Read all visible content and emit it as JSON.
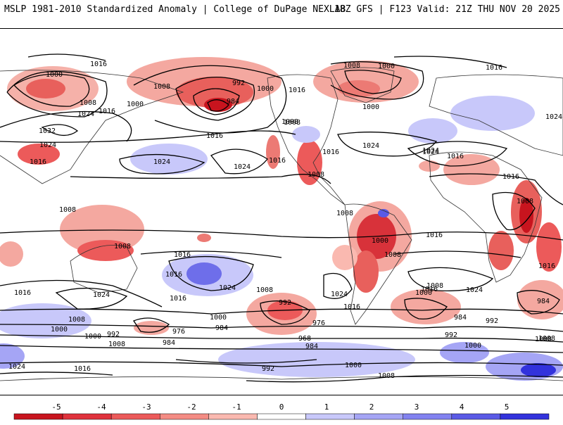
{
  "header": {
    "left_title": "MSLP 1981-2010 Standardized Anomaly | College of DuPage NEXLAB",
    "right_title": "18Z GFS | F123 Valid: 21Z THU NOV 20 2025"
  },
  "map": {
    "isobar_labels": [
      {
        "text": "1016",
        "id": "label-1016-nw"
      },
      {
        "text": "1000",
        "id": "label-1000-europe"
      },
      {
        "text": "1008",
        "id": "label-1008-europe"
      },
      {
        "text": "1024",
        "id": "label-1024-asia"
      },
      {
        "text": "1032",
        "id": "label-1032-asia"
      },
      {
        "text": "1024",
        "id": "label-1024-china"
      },
      {
        "text": "1016",
        "id": "label-1016-china"
      },
      {
        "text": "1016",
        "id": "label-1016-japan"
      },
      {
        "text": "1000",
        "id": "label-1000-kamchatka"
      },
      {
        "text": "1008",
        "id": "label-1008-bering"
      },
      {
        "text": "992",
        "id": "label-992-aleutian"
      },
      {
        "text": "984",
        "id": "label-984-aleutian"
      },
      {
        "text": "1000",
        "id": "label-1000-gulf-alaska"
      },
      {
        "text": "1016",
        "id": "label-1016-canada"
      },
      {
        "text": "1008",
        "id": "label-1008-hudson"
      },
      {
        "text": "1000",
        "id": "label-1000-greenland"
      },
      {
        "text": "1008",
        "id": "label-1008-atlantic-n"
      },
      {
        "text": "1000",
        "id": "label-1000-atlantic-n"
      },
      {
        "text": "1016",
        "id": "label-1016-ne-atl"
      },
      {
        "text": "1024",
        "id": "label-1024-eurasia-e"
      },
      {
        "text": "1016",
        "id": "label-1016-pacific-n"
      },
      {
        "text": "1024",
        "id": "label-1024-pacific-w"
      },
      {
        "text": "1024",
        "id": "label-1024-pacific-c"
      },
      {
        "text": "1016",
        "id": "label-1016-west-coast"
      },
      {
        "text": "1008",
        "id": "label-1008-sw-us"
      },
      {
        "text": "1008",
        "id": "label-1008-mexico"
      },
      {
        "text": "1016",
        "id": "label-1016-gulf"
      },
      {
        "text": "1024",
        "id": "label-1024-atlantic-c"
      },
      {
        "text": "1024",
        "id": "label-1024-sahara"
      },
      {
        "text": "1016",
        "id": "label-1016-sahara"
      },
      {
        "text": "1016",
        "id": "label-1016-egypt"
      },
      {
        "text": "1008",
        "id": "label-1008-africa"
      },
      {
        "text": "1016",
        "id": "label-1016-africa"
      },
      {
        "text": "1024",
        "id": "label-1024-far-east"
      },
      {
        "text": "1008",
        "id": "label-1008-maritime"
      },
      {
        "text": "1008",
        "id": "label-1008-indonesia"
      },
      {
        "text": "1016",
        "id": "label-1016-sw-pacific"
      },
      {
        "text": "1008",
        "id": "label-1008-peru"
      },
      {
        "text": "1000",
        "id": "label-1000-bolivia"
      },
      {
        "text": "1008",
        "id": "label-1008-brazil"
      },
      {
        "text": "1016",
        "id": "label-1016-atlantic-s"
      },
      {
        "text": "1016",
        "id": "label-1016-madagascar"
      },
      {
        "text": "1016",
        "id": "label-1016-indian-w"
      },
      {
        "text": "1024",
        "id": "label-1024-indian-s"
      },
      {
        "text": "1016",
        "id": "label-1016-tasman"
      },
      {
        "text": "1024",
        "id": "label-1024-pacific-s"
      },
      {
        "text": "1008",
        "id": "label-1008-pacific-s"
      },
      {
        "text": "992",
        "id": "label-992-pacific-s"
      },
      {
        "text": "1024",
        "id": "label-1024-argentina"
      },
      {
        "text": "1016",
        "id": "label-1016-patagonia"
      },
      {
        "text": "1008",
        "id": "label-1008-atlantic-s"
      },
      {
        "text": "1000",
        "id": "label-1000-atlantic-s"
      },
      {
        "text": "984",
        "id": "label-984-atlantic-s"
      },
      {
        "text": "992",
        "id": "label-992-atlantic-s"
      },
      {
        "text": "1024",
        "id": "label-1024-indian-se"
      },
      {
        "text": "984",
        "id": "label-984-indian-se"
      },
      {
        "text": "1008",
        "id": "label-1008-indian-se"
      },
      {
        "text": "1016",
        "id": "label-1016-indian-w2"
      },
      {
        "text": "1000",
        "id": "label-1000-indian-sw"
      },
      {
        "text": "1008",
        "id": "label-1008-indian-sw"
      },
      {
        "text": "1000",
        "id": "label-1000-southern-w"
      },
      {
        "text": "992",
        "id": "label-992-southern-w"
      },
      {
        "text": "1008",
        "id": "label-1008-southern-w"
      },
      {
        "text": "976",
        "id": "label-976-southern"
      },
      {
        "text": "984",
        "id": "label-984-southern"
      },
      {
        "text": "1000",
        "id": "label-1000-southern"
      },
      {
        "text": "984",
        "id": "label-984-ross"
      },
      {
        "text": "976",
        "id": "label-976-amundsen"
      },
      {
        "text": "968",
        "id": "label-968-amundsen"
      },
      {
        "text": "984",
        "id": "label-984-amundsen"
      },
      {
        "text": "992",
        "id": "label-992-weddell"
      },
      {
        "text": "1000",
        "id": "label-1000-weddell"
      },
      {
        "text": "1000",
        "id": "label-1000-antarctic-e"
      },
      {
        "text": "1008",
        "id": "label-1008-antarctic-e"
      },
      {
        "text": "1024",
        "id": "label-1024-antarctic-w"
      },
      {
        "text": "1016",
        "id": "label-1016-antarctic-w"
      },
      {
        "text": "992",
        "id": "label-992-antarctic"
      },
      {
        "text": "1008",
        "id": "label-1008-antarctic"
      }
    ]
  },
  "colorbar": {
    "ticks": [
      "-5",
      "-4",
      "-3",
      "-2",
      "-1",
      "0",
      "1",
      "2",
      "3",
      "4",
      "5"
    ],
    "colors": [
      "#c8141e",
      "#e0323c",
      "#ec5a5a",
      "#f48c84",
      "#fab9b0",
      "#ffffff",
      "#c8c8fa",
      "#a5a5f5",
      "#8282f0",
      "#5a5ae6",
      "#3232dc"
    ]
  }
}
